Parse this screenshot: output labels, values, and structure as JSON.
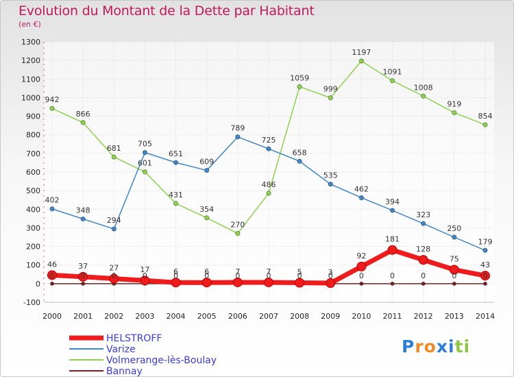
{
  "title": "Evolution du Montant de la Dette par Habitant",
  "subtitle": "(en €)",
  "logo": {
    "text": "Proxiti",
    "letter_colors": [
      "#2c7fd6",
      "#f08a24",
      "#f08a24",
      "#2c7fd6",
      "#2c7fd6",
      "#8cc63f",
      "#8cc63f"
    ]
  },
  "chart_data": {
    "type": "line",
    "title": "Evolution du Montant de la Dette par Habitant",
    "ylabel": "(en €)",
    "x": [
      "2000",
      "2001",
      "2002",
      "2003",
      "2004",
      "2005",
      "2006",
      "2007",
      "2008",
      "2009",
      "2010",
      "2011",
      "2012",
      "2013",
      "2014"
    ],
    "ylim": [
      -100,
      1300
    ],
    "yticks": [
      -100,
      0,
      100,
      200,
      300,
      400,
      500,
      600,
      700,
      800,
      900,
      1000,
      1100,
      1200,
      1300
    ],
    "grid": true,
    "legend_position": "bottom-left",
    "series": [
      {
        "name": "HELSTROFF",
        "color": "#ee1c1c",
        "values": [
          46,
          37,
          27,
          17,
          6,
          6,
          7,
          7,
          5,
          3,
          92,
          181,
          128,
          75,
          43
        ]
      },
      {
        "name": "Varize",
        "color": "#3d87c9",
        "values": [
          402,
          348,
          294,
          705,
          651,
          609,
          789,
          725,
          658,
          535,
          462,
          394,
          323,
          250,
          179
        ]
      },
      {
        "name": "Volmerange-lès-Boulay",
        "color": "#8cd24c",
        "values": [
          942,
          866,
          681,
          601,
          431,
          354,
          270,
          486,
          1059,
          999,
          1197,
          1091,
          1008,
          919,
          854
        ]
      },
      {
        "name": "Bannay",
        "color": "#7a1f1f",
        "values": [
          0,
          0,
          0,
          0,
          0,
          0,
          0,
          0,
          0,
          0,
          0,
          0,
          0,
          0,
          0
        ]
      }
    ]
  }
}
